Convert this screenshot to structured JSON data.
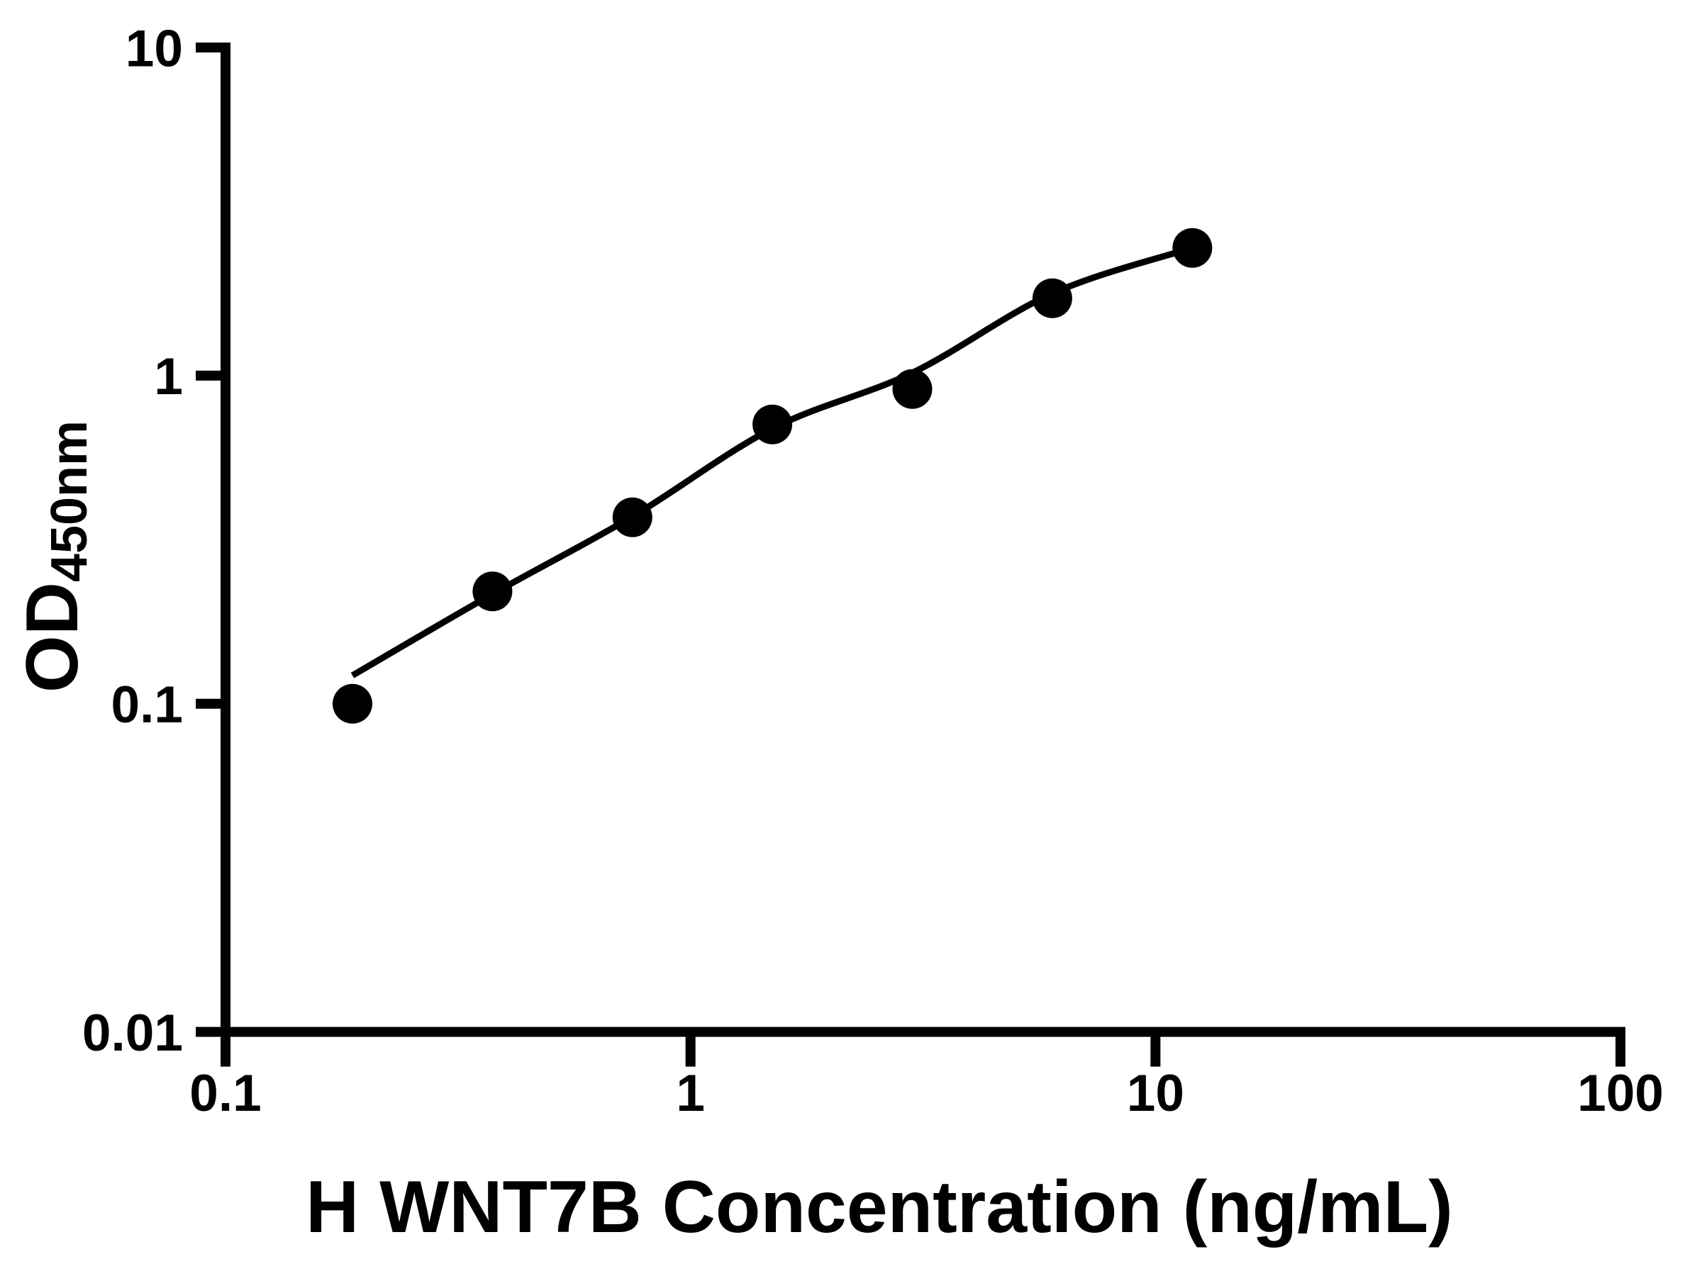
{
  "chart_data": {
    "type": "scatter",
    "title": "",
    "xlabel": "H WNT7B Concentration (ng/mL)",
    "ylabel": "OD450nm",
    "ylabel_main": "OD",
    "ylabel_sub": "450nm",
    "xscale": "log",
    "yscale": "log",
    "xlim": [
      0.1,
      100
    ],
    "ylim": [
      0.01,
      10
    ],
    "grid": false,
    "legend": false,
    "x_ticks": [
      {
        "value": 0.1,
        "label": "0.1"
      },
      {
        "value": 1,
        "label": "1"
      },
      {
        "value": 10,
        "label": "10"
      },
      {
        "value": 100,
        "label": "100"
      }
    ],
    "y_ticks": [
      {
        "value": 0.01,
        "label": "0.01"
      },
      {
        "value": 0.1,
        "label": "0.1"
      },
      {
        "value": 1,
        "label": "1"
      },
      {
        "value": 10,
        "label": "10"
      }
    ],
    "series": [
      {
        "marker": "filled-circle",
        "color": "#000000",
        "x": [
          0.1875,
          0.375,
          0.75,
          1.5,
          3,
          6,
          12
        ],
        "y": [
          0.1,
          0.22,
          0.37,
          0.71,
          0.91,
          1.72,
          2.45
        ]
      }
    ],
    "fit_curve": {
      "color": "#000000",
      "x": [
        0.1875,
        0.375,
        0.75,
        1.5,
        3,
        6,
        12
      ],
      "y": [
        0.122,
        0.216,
        0.372,
        0.69,
        1.02,
        1.78,
        2.45
      ]
    },
    "colors": {
      "foreground": "#000000",
      "background": "#ffffff"
    }
  }
}
